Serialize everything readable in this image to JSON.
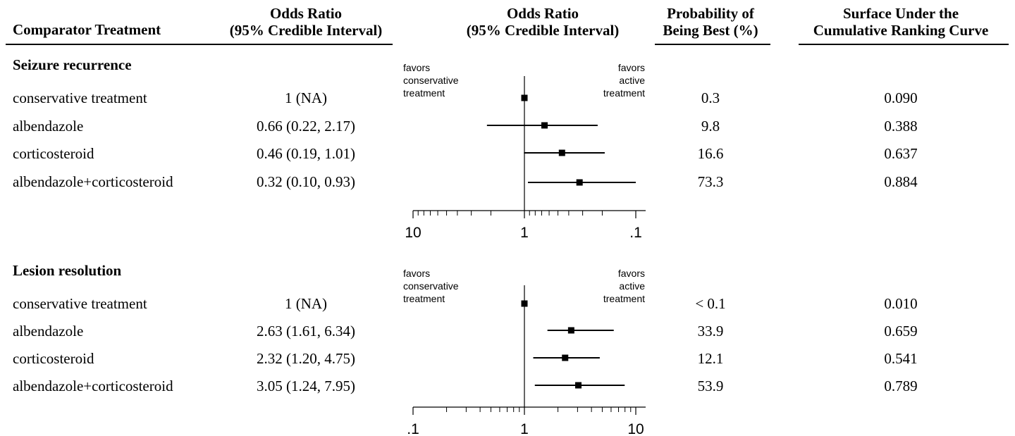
{
  "headers": {
    "comparator": "Comparator Treatment",
    "or_text": [
      "Odds Ratio",
      "(95% Credible Interval)"
    ],
    "or_plot": [
      "Odds Ratio",
      "(95% Credible Interval)"
    ],
    "prob": [
      "Probability of",
      "Being Best (%)"
    ],
    "sucra": [
      "Surface Under the",
      "Cumulative Ranking Curve"
    ]
  },
  "chart_data": [
    {
      "type": "forest",
      "section": "Seizure recurrence",
      "scale": "log",
      "x_reversed": true,
      "xlim": [
        10,
        0.1
      ],
      "ticks": [
        10,
        1,
        0.1
      ],
      "tick_labels": [
        "10",
        "1",
        ".1"
      ],
      "reference_line": 1,
      "favors_left": [
        "favors",
        "conservative",
        "treatment"
      ],
      "favors_right": [
        "favors",
        "active",
        "treatment"
      ],
      "rows": [
        {
          "treatment": "conservative treatment",
          "or_text": "1 (NA)",
          "or": 1,
          "lo": null,
          "hi": null,
          "prob_best": "0.3",
          "sucra": "0.090"
        },
        {
          "treatment": "albendazole",
          "or_text": "0.66 (0.22, 2.17)",
          "or": 0.66,
          "lo": 0.22,
          "hi": 2.17,
          "prob_best": "9.8",
          "sucra": "0.388"
        },
        {
          "treatment": "corticosteroid",
          "or_text": "0.46 (0.19, 1.01)",
          "or": 0.46,
          "lo": 0.19,
          "hi": 1.01,
          "prob_best": "16.6",
          "sucra": "0.637"
        },
        {
          "treatment": "albendazole+corticosteroid",
          "or_text": "0.32 (0.10, 0.93)",
          "or": 0.32,
          "lo": 0.1,
          "hi": 0.93,
          "prob_best": "73.3",
          "sucra": "0.884"
        }
      ]
    },
    {
      "type": "forest",
      "section": "Lesion resolution",
      "scale": "log",
      "x_reversed": false,
      "xlim": [
        0.1,
        10
      ],
      "ticks": [
        0.1,
        1,
        10
      ],
      "tick_labels": [
        ".1",
        "1",
        "10"
      ],
      "reference_line": 1,
      "favors_left": [
        "favors",
        "conservative",
        "treatment"
      ],
      "favors_right": [
        "favors",
        "active",
        "treatment"
      ],
      "rows": [
        {
          "treatment": "conservative treatment",
          "or_text": "1 (NA)",
          "or": 1,
          "lo": null,
          "hi": null,
          "prob_best": "< 0.1",
          "sucra": "0.010"
        },
        {
          "treatment": "albendazole",
          "or_text": "2.63 (1.61, 6.34)",
          "or": 2.63,
          "lo": 1.61,
          "hi": 6.34,
          "prob_best": "33.9",
          "sucra": "0.659"
        },
        {
          "treatment": "corticosteroid",
          "or_text": "2.32 (1.20, 4.75)",
          "or": 2.32,
          "lo": 1.2,
          "hi": 4.75,
          "prob_best": "12.1",
          "sucra": "0.541"
        },
        {
          "treatment": "albendazole+corticosteroid",
          "or_text": "3.05 (1.24, 7.95)",
          "or": 3.05,
          "lo": 1.24,
          "hi": 7.95,
          "prob_best": "53.9",
          "sucra": "0.789"
        }
      ]
    }
  ]
}
